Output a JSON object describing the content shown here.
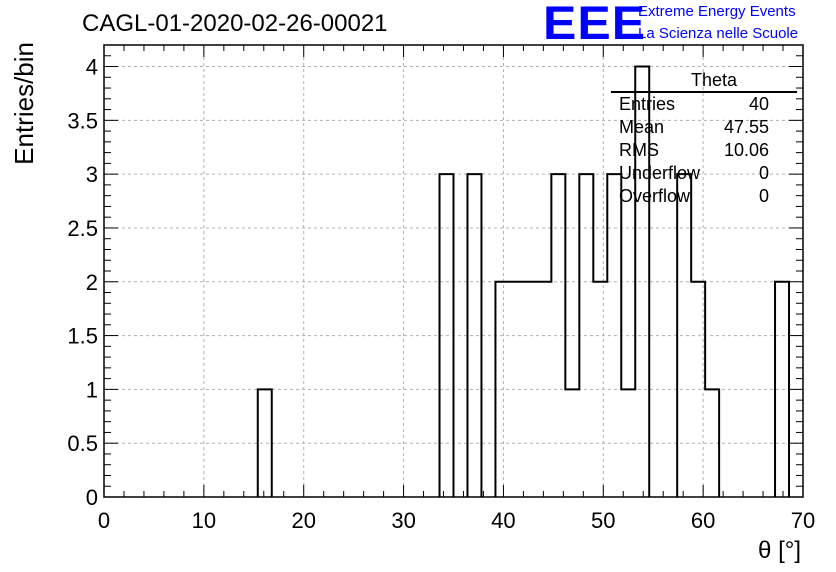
{
  "title": "CAGL-01-2020-02-26-00021",
  "logo": {
    "mark": "EEE",
    "line1": "Extreme Energy Events",
    "line2": "La Scienza nelle Scuole",
    "color": "#0000ff"
  },
  "stats": {
    "name": "Theta",
    "rows": [
      {
        "key": "Entries",
        "value": "40"
      },
      {
        "key": "Mean",
        "value": "47.55"
      },
      {
        "key": "RMS",
        "value": "10.06"
      },
      {
        "key": "Underflow",
        "value": "0"
      },
      {
        "key": "Overflow",
        "value": "0"
      }
    ]
  },
  "chart_data": {
    "type": "bar",
    "histogram": true,
    "xlabel": "θ [°]",
    "ylabel": "Entries/bin",
    "xlim": [
      0,
      70
    ],
    "ylim": [
      0,
      4.2
    ],
    "grid": true,
    "x_ticks": [
      0,
      10,
      20,
      30,
      40,
      50,
      60,
      70
    ],
    "x_tick_labels": [
      "0",
      "10",
      "20",
      "30",
      "40",
      "50",
      "60",
      "70"
    ],
    "y_ticks": [
      0,
      0.5,
      1,
      1.5,
      2,
      2.5,
      3,
      3.5,
      4
    ],
    "y_tick_labels": [
      "0",
      "0.5",
      "1",
      "1.5",
      "2",
      "2.5",
      "3",
      "3.5",
      "4"
    ],
    "bin_width": 1.4,
    "bins": [
      {
        "x0": 15.4,
        "x1": 16.8,
        "y": 1
      },
      {
        "x0": 33.6,
        "x1": 35.0,
        "y": 3
      },
      {
        "x0": 36.4,
        "x1": 37.8,
        "y": 3
      },
      {
        "x0": 39.2,
        "x1": 40.6,
        "y": 2
      },
      {
        "x0": 40.6,
        "x1": 42.0,
        "y": 2
      },
      {
        "x0": 42.0,
        "x1": 43.4,
        "y": 2
      },
      {
        "x0": 43.4,
        "x1": 44.8,
        "y": 2
      },
      {
        "x0": 44.8,
        "x1": 46.2,
        "y": 3
      },
      {
        "x0": 46.2,
        "x1": 47.6,
        "y": 1
      },
      {
        "x0": 47.6,
        "x1": 49.0,
        "y": 3
      },
      {
        "x0": 49.0,
        "x1": 50.4,
        "y": 2
      },
      {
        "x0": 50.4,
        "x1": 51.8,
        "y": 3
      },
      {
        "x0": 51.8,
        "x1": 53.2,
        "y": 1
      },
      {
        "x0": 53.2,
        "x1": 54.6,
        "y": 4
      },
      {
        "x0": 57.4,
        "x1": 58.8,
        "y": 3
      },
      {
        "x0": 58.8,
        "x1": 60.2,
        "y": 2
      },
      {
        "x0": 60.2,
        "x1": 61.6,
        "y": 1
      },
      {
        "x0": 67.2,
        "x1": 68.6,
        "y": 2
      }
    ]
  }
}
